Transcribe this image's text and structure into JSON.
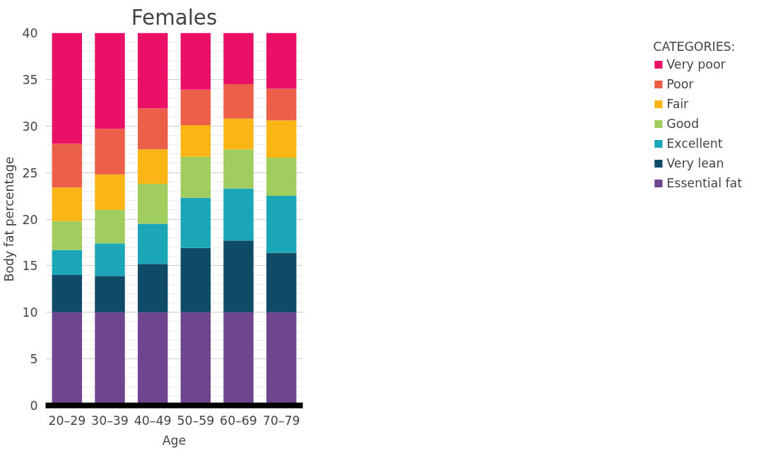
{
  "chart_data": {
    "type": "bar",
    "stacked": true,
    "title": "Females",
    "xlabel": "Age",
    "ylabel": "Body fat percentage",
    "legend_title": "CATEGORIES:",
    "categories": [
      "20–29",
      "30–39",
      "40–49",
      "50–59",
      "60–69",
      "70–79"
    ],
    "series": [
      {
        "name": "Essential fat",
        "color": "#6f4590",
        "values": [
          10,
          10,
          10,
          10,
          10,
          10
        ]
      },
      {
        "name": "Very lean",
        "color": "#0f4a66",
        "values": [
          4,
          3.9,
          5.2,
          6.9,
          7.7,
          6.4
        ]
      },
      {
        "name": "Excellent",
        "color": "#1aa6b7",
        "values": [
          2.7,
          3.5,
          4.3,
          5.4,
          5.6,
          6.1
        ]
      },
      {
        "name": "Good",
        "color": "#a1cd5e",
        "values": [
          3.1,
          3.6,
          4.3,
          4.4,
          4.2,
          4.1
        ]
      },
      {
        "name": "Fair",
        "color": "#fbb514",
        "values": [
          3.6,
          3.8,
          3.7,
          3.4,
          3.3,
          4.0
        ]
      },
      {
        "name": "Poor",
        "color": "#ec5f49",
        "values": [
          4.7,
          4.9,
          4.4,
          3.8,
          3.7,
          3.4
        ]
      },
      {
        "name": "Very poor",
        "color": "#ea1068",
        "values": [
          11.9,
          10.3,
          8.1,
          6.1,
          5.5,
          6.0
        ]
      }
    ],
    "ylim": [
      0,
      40
    ],
    "yticks": [
      0,
      5,
      10,
      15,
      20,
      25,
      30,
      35,
      40
    ],
    "grid": "y",
    "legend": "right"
  }
}
